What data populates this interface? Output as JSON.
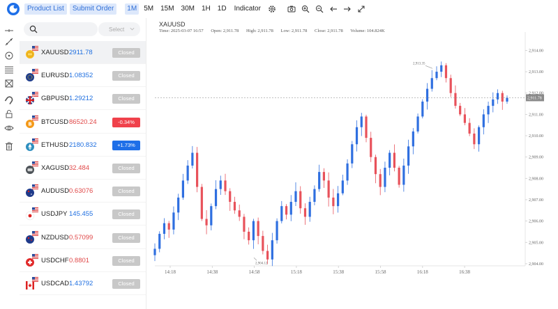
{
  "toolbar": {
    "product_list": "Product List",
    "submit_order": "Submit Order",
    "timeframes": [
      "1M",
      "5M",
      "15M",
      "30M",
      "1H",
      "1D"
    ],
    "active_timeframe": "1M",
    "indicator": "Indicator",
    "icons": [
      "gear-icon",
      "camera-icon",
      "zoom-in-icon",
      "zoom-out-icon",
      "arrow-left-icon",
      "arrow-right-icon",
      "fullscreen-icon"
    ]
  },
  "tools": [
    "crosshair-icon",
    "trend-line-icon",
    "circle-icon",
    "fibonacci-icon",
    "pattern-icon",
    "magnet-icon",
    "lock-icon",
    "eye-icon",
    "trash-icon"
  ],
  "search": {
    "placeholder": "",
    "select_placeholder": "Select"
  },
  "products": [
    {
      "symbol": "XAUUSD",
      "price": "2911.78",
      "dir": "up",
      "status": "Closed",
      "status_type": "closed",
      "flag": "gold"
    },
    {
      "symbol": "EURUSD",
      "price": "1.08352",
      "dir": "up",
      "status": "Closed",
      "status_type": "closed",
      "flag": "eu"
    },
    {
      "symbol": "GBPUSD",
      "price": "1.29212",
      "dir": "up",
      "status": "Closed",
      "status_type": "closed",
      "flag": "gb"
    },
    {
      "symbol": "BTCUSD",
      "price": "86520.24",
      "dir": "down",
      "status": "-0.34%",
      "status_type": "down",
      "flag": "btc"
    },
    {
      "symbol": "ETHUSD",
      "price": "2180.832",
      "dir": "up",
      "status": "+1.73%",
      "status_type": "up",
      "flag": "eth"
    },
    {
      "symbol": "XAGUSD",
      "price": "32.484",
      "dir": "down",
      "status": "Closed",
      "status_type": "closed",
      "flag": "silver"
    },
    {
      "symbol": "AUDUSD",
      "price": "0.63076",
      "dir": "down",
      "status": "Closed",
      "status_type": "closed",
      "flag": "au"
    },
    {
      "symbol": "USDJPY",
      "price": "145.455",
      "dir": "up",
      "status": "Closed",
      "status_type": "closed",
      "flag": "jp"
    },
    {
      "symbol": "NZDUSD",
      "price": "0.57099",
      "dir": "down",
      "status": "Closed",
      "status_type": "closed",
      "flag": "nz"
    },
    {
      "symbol": "USDCHF",
      "price": "0.8801",
      "dir": "down",
      "status": "Closed",
      "status_type": "closed",
      "flag": "ch"
    },
    {
      "symbol": "USDCAD",
      "price": "1.43792",
      "dir": "up",
      "status": "Closed",
      "status_type": "closed",
      "flag": "ca"
    }
  ],
  "chart": {
    "symbol": "XAUUSD",
    "time_label": "Time: 2025-03-07 16:57",
    "open_label": "Open: 2,911.78",
    "high_label": "High: 2,911.78",
    "low_label": "Low: 2,911.78",
    "close_label": "Close: 2,911.78",
    "volume_label": "Volume: 104.824K",
    "last_price_label": "2,911.78",
    "max_label": "2,913.35",
    "min_label": "2,904.12",
    "colors": {
      "up": "#2f6fe0",
      "down": "#e8525b",
      "last_line": "#999999"
    }
  },
  "chart_data": {
    "type": "candlestick",
    "ylim": [
      2903.9,
      2914.6
    ],
    "yticks": [
      "2,914.00",
      "2,913.00",
      "2,912.00",
      "2,911.00",
      "2,910.00",
      "2,909.00",
      "2,908.00",
      "2,907.00",
      "2,906.00",
      "2,905.00",
      "2,904.00"
    ],
    "ytick_values": [
      2914,
      2913,
      2912,
      2911,
      2910,
      2909,
      2908,
      2907,
      2906,
      2905,
      2904
    ],
    "xticks": [
      "14:18",
      "14:38",
      "14:58",
      "15:18",
      "15:38",
      "15:58",
      "16:18",
      "16:38"
    ],
    "last_price": 2911.78,
    "max_point": 2913.35,
    "min_point": 2904.12,
    "close_path": [
      2904.7,
      2905.4,
      2905.9,
      2905.6,
      2906.4,
      2907.1,
      2907.9,
      2908.6,
      2909.2,
      2907.6,
      2906.1,
      2905.8,
      2906.7,
      2907.5,
      2907.9,
      2907.4,
      2906.9,
      2906.5,
      2906.2,
      2905.5,
      2905.1,
      2906.0,
      2905.3,
      2904.6,
      2904.2,
      2905.1,
      2906.0,
      2906.7,
      2906.3,
      2906.9,
      2907.4,
      2906.6,
      2906.2,
      2906.9,
      2907.5,
      2908.3,
      2907.9,
      2907.1,
      2906.7,
      2907.3,
      2907.9,
      2908.7,
      2909.6,
      2910.4,
      2910.9,
      2909.9,
      2909.0,
      2908.2,
      2907.6,
      2908.5,
      2909.2,
      2908.5,
      2907.7,
      2908.6,
      2909.5,
      2910.2,
      2910.9,
      2911.6,
      2912.2,
      2912.7,
      2913.0,
      2913.3,
      2912.7,
      2912.0,
      2911.4,
      2911.0,
      2910.6,
      2910.1,
      2909.6,
      2910.4,
      2911.0,
      2911.4,
      2911.7,
      2912.0,
      2911.6,
      2911.78
    ]
  }
}
